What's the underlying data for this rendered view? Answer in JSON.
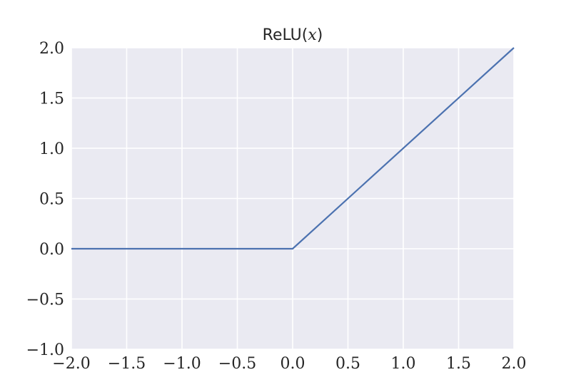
{
  "chart_data": {
    "type": "line",
    "title": {
      "function": "ReLU",
      "open": "(",
      "variable": "x",
      "close": ")"
    },
    "xlabel": "",
    "ylabel": "",
    "xlim": [
      -2.0,
      2.0
    ],
    "ylim": [
      -1.0,
      2.0
    ],
    "grid": true,
    "background": "#eaeaf2",
    "grid_color": "#ffffff",
    "line_color": "#4c72b0",
    "x_ticks": [
      -2.0,
      -1.5,
      -1.0,
      -0.5,
      0.0,
      0.5,
      1.0,
      1.5,
      2.0
    ],
    "x_tick_labels": [
      "−2.0",
      "−1.5",
      "−1.0",
      "−0.5",
      "0.0",
      "0.5",
      "1.0",
      "1.5",
      "2.0"
    ],
    "y_ticks": [
      -1.0,
      -0.5,
      0.0,
      0.5,
      1.0,
      1.5,
      2.0
    ],
    "y_tick_labels": [
      "−1.0",
      "−0.5",
      "0.0",
      "0.5",
      "1.0",
      "1.5",
      "2.0"
    ],
    "series": [
      {
        "x": [
          -2.0,
          0.0,
          2.0
        ],
        "y": [
          0.0,
          0.0,
          2.0
        ]
      }
    ]
  }
}
